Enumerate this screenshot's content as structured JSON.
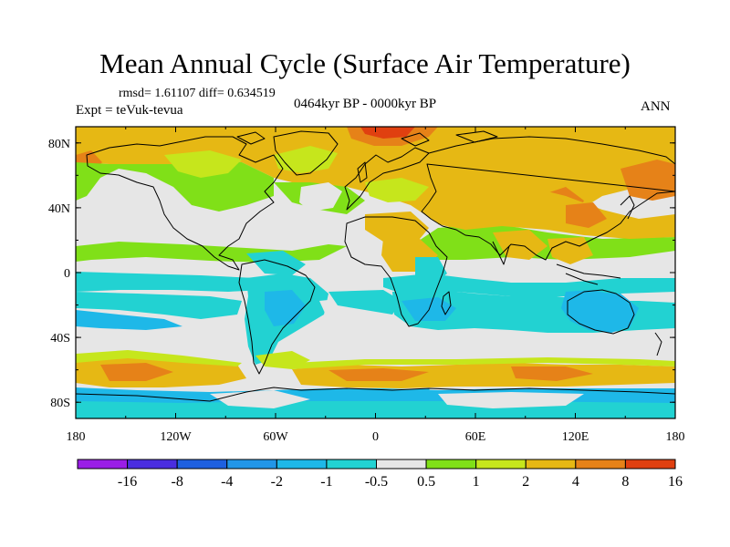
{
  "title": "Mean Annual Cycle (Surface Air Temperature)",
  "stats": "rmsd= 1.61107 diff= 0.634519",
  "period": "0464kyr BP - 0000kyr BP",
  "experiment": "Expt = teVuk-tevua",
  "season": "ANN",
  "map": {
    "lat_ticks": [
      "80N",
      "40N",
      "0",
      "40S",
      "80S"
    ],
    "lon_ticks": [
      "180",
      "120W",
      "60W",
      "0",
      "60E",
      "120E",
      "180"
    ],
    "lat_values": [
      80,
      40,
      0,
      -40,
      -80
    ],
    "lon_values": [
      -180,
      -120,
      -60,
      0,
      60,
      120,
      180
    ]
  },
  "colorbar": {
    "labels": [
      "-16",
      "-8",
      "-4",
      "-2",
      "-1",
      "-0.5",
      "0.5",
      "1",
      "2",
      "4",
      "8",
      "16"
    ],
    "colors": [
      "#9a1ee6",
      "#4a2ee0",
      "#1e60e0",
      "#2296e8",
      "#1eb8e8",
      "#22d2d2",
      "#e6e6e6",
      "#80e018",
      "#c6e61c",
      "#e6b814",
      "#e68218",
      "#e04010"
    ]
  }
}
